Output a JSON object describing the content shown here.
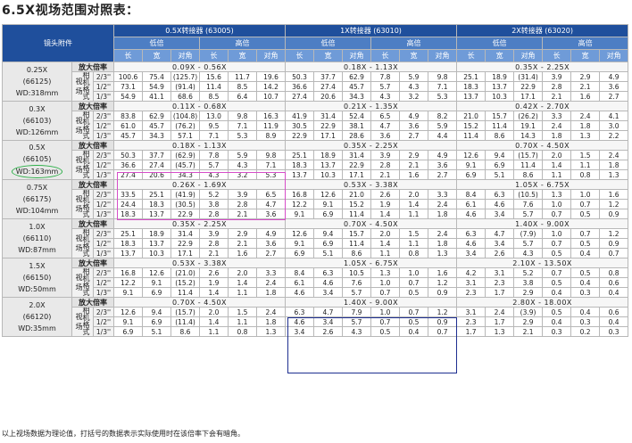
{
  "title": "6.5X视场范围对照表：",
  "header": {
    "lens_col": "镜头附件",
    "converters": [
      "0.5X转接器 (63005)",
      "1X转接器 (63010)",
      "2X转接器 (63020)"
    ],
    "low": "低倍",
    "high": "高倍",
    "cols": [
      "长",
      "宽",
      "对角"
    ]
  },
  "mag_label": "放大倍率",
  "fov_label": "视场",
  "sensor_label": "相机格式",
  "sensors": [
    "2/3''",
    "1/2''",
    "1/3''"
  ],
  "groups": [
    {
      "lens": "0.25X",
      "code": "(66125)",
      "wd": "WD:318mm",
      "mags": [
        "0.09X - 0.56X",
        "0.18X - 1.13X",
        "0.35X - 2.25X"
      ],
      "rows": [
        [
          "100.6",
          "75.4",
          "(125.7)",
          "15.6",
          "11.7",
          "19.6",
          "50.3",
          "37.7",
          "62.9",
          "7.8",
          "5.9",
          "9.8",
          "25.1",
          "18.9",
          "(31.4)",
          "3.9",
          "2.9",
          "4.9"
        ],
        [
          "73.1",
          "54.9",
          "(91.4)",
          "11.4",
          "8.5",
          "14.2",
          "36.6",
          "27.4",
          "45.7",
          "5.7",
          "4.3",
          "7.1",
          "18.3",
          "13.7",
          "22.9",
          "2.8",
          "2.1",
          "3.6"
        ],
        [
          "54.9",
          "41.1",
          "68.6",
          "8.5",
          "6.4",
          "10.7",
          "27.4",
          "20.6",
          "34.3",
          "4.3",
          "3.2",
          "5.3",
          "13.7",
          "10.3",
          "17.1",
          "2.1",
          "1.6",
          "2.7"
        ]
      ]
    },
    {
      "lens": "0.3X",
      "code": "(66103)",
      "wd": "WD:126mm",
      "mags": [
        "0.11X - 0.68X",
        "0.21X - 1.35X",
        "0.42X - 2.70X"
      ],
      "rows": [
        [
          "83.8",
          "62.9",
          "(104.8)",
          "13.0",
          "9.8",
          "16.3",
          "41.9",
          "31.4",
          "52.4",
          "6.5",
          "4.9",
          "8.2",
          "21.0",
          "15.7",
          "(26.2)",
          "3.3",
          "2.4",
          "4.1"
        ],
        [
          "61.0",
          "45.7",
          "(76.2)",
          "9.5",
          "7.1",
          "11.9",
          "30.5",
          "22.9",
          "38.1",
          "4.7",
          "3.6",
          "5.9",
          "15.2",
          "11.4",
          "19.1",
          "2.4",
          "1.8",
          "3.0"
        ],
        [
          "45.7",
          "34.3",
          "57.1",
          "7.1",
          "5.3",
          "8.9",
          "22.9",
          "17.1",
          "28.6",
          "3.6",
          "2.7",
          "4.4",
          "11.4",
          "8.6",
          "14.3",
          "1.8",
          "1.3",
          "2.2"
        ]
      ]
    },
    {
      "lens": "0.5X",
      "code": "(66105)",
      "wd": "WD:163mm",
      "circled": true,
      "mags": [
        "0.18X - 1.13X",
        "0.35X - 2.25X",
        "0.70X - 4.50X"
      ],
      "rows": [
        [
          "50.3",
          "37.7",
          "(62.9)",
          "7.8",
          "5.9",
          "9.8",
          "25.1",
          "18.9",
          "31.4",
          "3.9",
          "2.9",
          "4.9",
          "12.6",
          "9.4",
          "(15.7)",
          "2.0",
          "1.5",
          "2.4"
        ],
        [
          "36.6",
          "27.4",
          "(45.7)",
          "5.7",
          "4.3",
          "7.1",
          "18.3",
          "13.7",
          "22.9",
          "2.8",
          "2.1",
          "3.6",
          "9.1",
          "6.9",
          "11.4",
          "1.4",
          "1.1",
          "1.8"
        ],
        [
          "27.4",
          "20.6",
          "34.3",
          "4.3",
          "3.2",
          "5.3",
          "13.7",
          "10.3",
          "17.1",
          "2.1",
          "1.6",
          "2.7",
          "6.9",
          "5.1",
          "8.6",
          "1.1",
          "0.8",
          "1.3"
        ]
      ]
    },
    {
      "lens": "0.75X",
      "code": "(66175)",
      "wd": "WD:104mm",
      "mags": [
        "0.26X - 1.69X",
        "0.53X - 3.38X",
        "1.05X - 6.75X"
      ],
      "rows": [
        [
          "33.5",
          "25.1",
          "(41.9)",
          "5.2",
          "3.9",
          "6.5",
          "16.8",
          "12.6",
          "21.0",
          "2.6",
          "2.0",
          "3.3",
          "8.4",
          "6.3",
          "(10.5)",
          "1.3",
          "1.0",
          "1.6"
        ],
        [
          "24.4",
          "18.3",
          "(30.5)",
          "3.8",
          "2.8",
          "4.7",
          "12.2",
          "9.1",
          "15.2",
          "1.9",
          "1.4",
          "2.4",
          "6.1",
          "4.6",
          "7.6",
          "1.0",
          "0.7",
          "1.2"
        ],
        [
          "18.3",
          "13.7",
          "22.9",
          "2.8",
          "2.1",
          "3.6",
          "9.1",
          "6.9",
          "11.4",
          "1.4",
          "1.1",
          "1.8",
          "4.6",
          "3.4",
          "5.7",
          "0.7",
          "0.5",
          "0.9"
        ]
      ]
    },
    {
      "lens": "1.0X",
      "code": "(66110)",
      "wd": "WD:87mm",
      "mags": [
        "0.35X - 2.25X",
        "0.70X - 4.50X",
        "1.40X - 9.00X"
      ],
      "rows": [
        [
          "25.1",
          "18.9",
          "31.4",
          "3.9",
          "2.9",
          "4.9",
          "12.6",
          "9.4",
          "15.7",
          "2.0",
          "1.5",
          "2.4",
          "6.3",
          "4.7",
          "(7.9)",
          "1.0",
          "0.7",
          "1.2"
        ],
        [
          "18.3",
          "13.7",
          "22.9",
          "2.8",
          "2.1",
          "3.6",
          "9.1",
          "6.9",
          "11.4",
          "1.4",
          "1.1",
          "1.8",
          "4.6",
          "3.4",
          "5.7",
          "0.7",
          "0.5",
          "0.9"
        ],
        [
          "13.7",
          "10.3",
          "17.1",
          "2.1",
          "1.6",
          "2.7",
          "6.9",
          "5.1",
          "8.6",
          "1.1",
          "0.8",
          "1.3",
          "3.4",
          "2.6",
          "4.3",
          "0.5",
          "0.4",
          "0.7"
        ]
      ]
    },
    {
      "lens": "1.5X",
      "code": "(66150)",
      "wd": "WD:50mm",
      "mags": [
        "0.53X - 3.38X",
        "1.05X - 6.75X",
        "2.10X - 13.50X"
      ],
      "rows": [
        [
          "16.8",
          "12.6",
          "(21.0)",
          "2.6",
          "2.0",
          "3.3",
          "8.4",
          "6.3",
          "10.5",
          "1.3",
          "1.0",
          "1.6",
          "4.2",
          "3.1",
          "5.2",
          "0.7",
          "0.5",
          "0.8"
        ],
        [
          "12.2",
          "9.1",
          "(15.2)",
          "1.9",
          "1.4",
          "2.4",
          "6.1",
          "4.6",
          "7.6",
          "1.0",
          "0.7",
          "1.2",
          "3.1",
          "2.3",
          "3.8",
          "0.5",
          "0.4",
          "0.6"
        ],
        [
          "9.1",
          "6.9",
          "11.4",
          "1.4",
          "1.1",
          "1.8",
          "4.6",
          "3.4",
          "5.7",
          "0.7",
          "0.5",
          "0.9",
          "2.3",
          "1.7",
          "2.9",
          "0.4",
          "0.3",
          "0.4"
        ]
      ]
    },
    {
      "lens": "2.0X",
      "code": "(66120)",
      "wd": "WD:35mm",
      "mags": [
        "0.70X - 4.50X",
        "1.40X - 9.00X",
        "2.80X - 18.00X"
      ],
      "rows": [
        [
          "12.6",
          "9.4",
          "(15.7)",
          "2.0",
          "1.5",
          "2.4",
          "6.3",
          "4.7",
          "7.9",
          "1.0",
          "0.7",
          "1.2",
          "3.1",
          "2.4",
          "(3.9)",
          "0.5",
          "0.4",
          "0.6"
        ],
        [
          "9.1",
          "6.9",
          "(11.4)",
          "1.4",
          "1.1",
          "1.8",
          "4.6",
          "3.4",
          "5.7",
          "0.7",
          "0.5",
          "0.9",
          "2.3",
          "1.7",
          "2.9",
          "0.4",
          "0.3",
          "0.4"
        ],
        [
          "6.9",
          "5.1",
          "8.6",
          "1.1",
          "0.8",
          "1.3",
          "3.4",
          "2.6",
          "4.3",
          "0.5",
          "0.4",
          "0.7",
          "1.7",
          "1.3",
          "2.1",
          "0.3",
          "0.2",
          "0.3"
        ]
      ]
    }
  ],
  "footnote": "以上视场数据为理论值，打括号的数据表示实际使用时在该倍率下会有暗角。"
}
